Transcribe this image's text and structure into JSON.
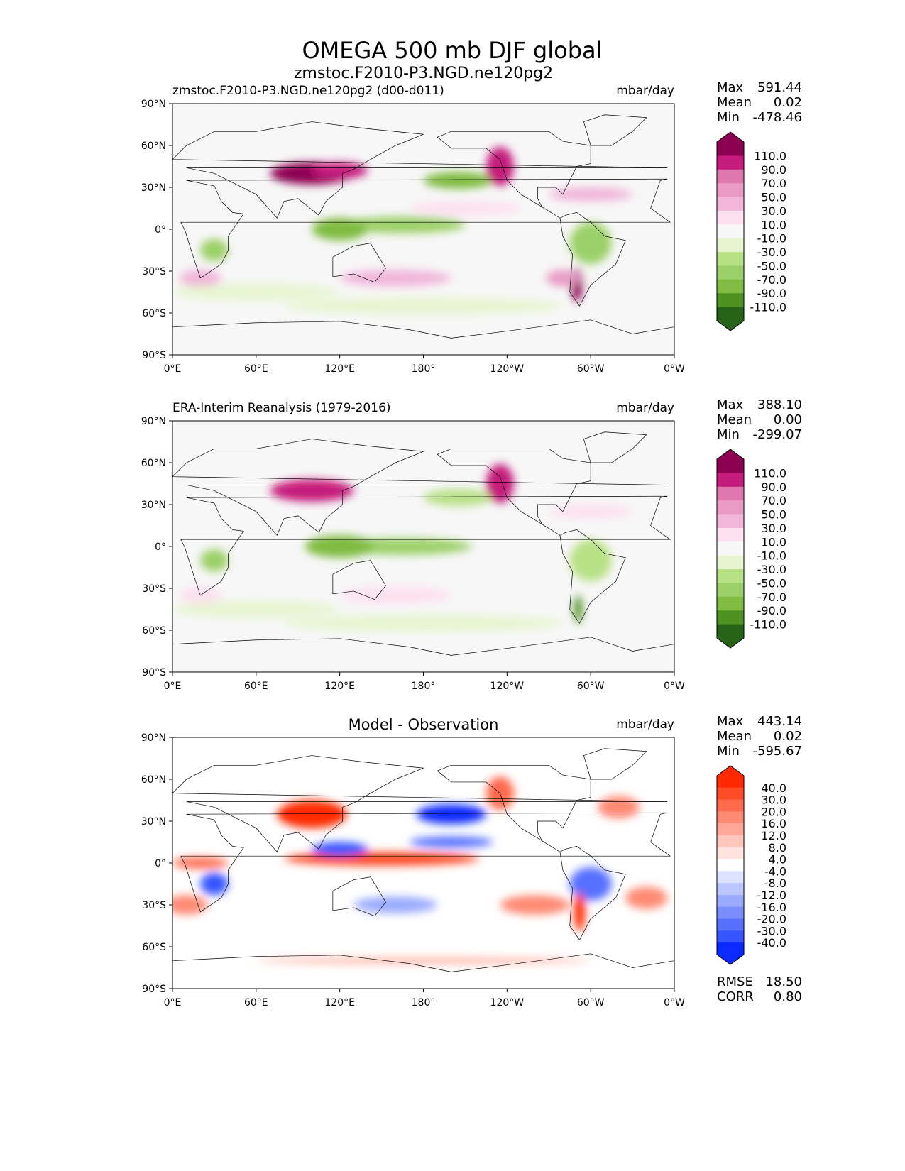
{
  "figure_title": "OMEGA 500 mb DJF global",
  "chart_data": [
    {
      "type": "heatmap",
      "subtype": "global contour map",
      "left_title": "zmstoc.F2010-P3.NGD.ne120pg2 (d00-d011)",
      "center_title": "zmstoc.F2010-P3.NGD.ne120pg2",
      "units": "mbar/day",
      "stats": {
        "max_label": "Max",
        "max": "591.44",
        "mean_label": "Mean",
        "mean": "0.02",
        "min_label": "Min",
        "min": "-478.46"
      },
      "colorbar": {
        "levels": [
          "110.0",
          "90.0",
          "70.0",
          "50.0",
          "30.0",
          "10.0",
          "-10.0",
          "-30.0",
          "-50.0",
          "-70.0",
          "-90.0",
          "-110.0"
        ],
        "colors": [
          "#8e0152",
          "#c51b7d",
          "#de77ae",
          "#e99bc6",
          "#f1b6da",
          "#fde0ef",
          "#f7f7f7",
          "#e6f5d0",
          "#b8e186",
          "#9bd068",
          "#7fbc41",
          "#4d9221",
          "#276419"
        ]
      },
      "x_ticks": [
        "0°E",
        "60°E",
        "120°E",
        "180°",
        "120°W",
        "60°W",
        "0°W"
      ],
      "y_ticks": [
        "90°N",
        "60°N",
        "30°N",
        "0°",
        "30°S",
        "60°S",
        "90°S"
      ]
    },
    {
      "type": "heatmap",
      "subtype": "global contour map",
      "left_title": "ERA-Interim Reanalysis (1979-2016)",
      "center_title": "",
      "units": "mbar/day",
      "stats": {
        "max_label": "Max",
        "max": "388.10",
        "mean_label": "Mean",
        "mean": "0.00",
        "min_label": "Min",
        "min": "-299.07"
      },
      "colorbar": {
        "levels": [
          "110.0",
          "90.0",
          "70.0",
          "50.0",
          "30.0",
          "10.0",
          "-10.0",
          "-30.0",
          "-50.0",
          "-70.0",
          "-90.0",
          "-110.0"
        ],
        "colors": [
          "#8e0152",
          "#c51b7d",
          "#de77ae",
          "#e99bc6",
          "#f1b6da",
          "#fde0ef",
          "#f7f7f7",
          "#e6f5d0",
          "#b8e186",
          "#9bd068",
          "#7fbc41",
          "#4d9221",
          "#276419"
        ]
      },
      "x_ticks": [
        "0°E",
        "60°E",
        "120°E",
        "180°",
        "120°W",
        "60°W",
        "0°W"
      ],
      "y_ticks": [
        "90°N",
        "60°N",
        "30°N",
        "0°",
        "30°S",
        "60°S",
        "90°S"
      ]
    },
    {
      "type": "heatmap",
      "subtype": "global contour map",
      "left_title": "",
      "center_title": "Model - Observation",
      "units": "mbar/day",
      "stats": {
        "max_label": "Max",
        "max": "443.14",
        "mean_label": "Mean",
        "mean": "0.02",
        "min_label": "Min",
        "min": "-595.67",
        "rmse_label": "RMSE",
        "rmse": "18.50",
        "corr_label": "CORR",
        "corr": "0.80"
      },
      "colorbar": {
        "levels": [
          "40.0",
          "30.0",
          "20.0",
          "16.0",
          "12.0",
          "8.0",
          "4.0",
          "-4.0",
          "-8.0",
          "-12.0",
          "-16.0",
          "-20.0",
          "-30.0",
          "-40.0"
        ],
        "colors": [
          "#ff2a00",
          "#ff4b26",
          "#ff6a4d",
          "#ff8a73",
          "#ffa899",
          "#ffc6bd",
          "#ffe3de",
          "#ffffff",
          "#dde3ff",
          "#bcc6ff",
          "#9aaaff",
          "#798dff",
          "#5670ff",
          "#3654ff",
          "#0a2aff"
        ]
      },
      "x_ticks": [
        "0°E",
        "60°E",
        "120°E",
        "180°",
        "120°W",
        "60°W",
        "0°W"
      ],
      "y_ticks": [
        "90°N",
        "60°N",
        "30°N",
        "0°",
        "30°S",
        "60°S",
        "90°S"
      ]
    }
  ]
}
